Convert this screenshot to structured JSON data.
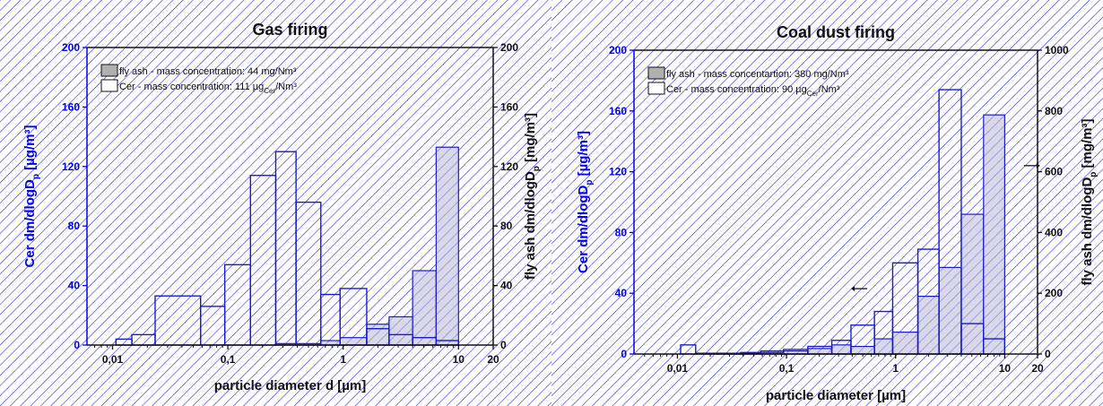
{
  "colors": {
    "hatch": "#2a2ad8",
    "axis": "#0000ee",
    "frame": "#111111",
    "bar_edge": "#1a1acc",
    "flyash_fill": "#b8b8d6",
    "cer_fill": "#ffffff",
    "legend_flyash_swatch": "#b0b0b0"
  },
  "chart_data": [
    {
      "type": "bar",
      "title": "Gas firing",
      "xlabel": "particle diameter d [µm]",
      "ylabel_left": "Cer dm/dlogDp [µg/m³]",
      "ylabel_right": "fly ash dm/dlogDp [mg/m³]",
      "x_scale": "log",
      "xlim": [
        0.006,
        20
      ],
      "x_ticks": [
        "0,01",
        "0,1",
        "1",
        "10",
        "20"
      ],
      "ylim_left": [
        0,
        200
      ],
      "ylim_right": [
        0,
        200
      ],
      "y_ticks_left": [
        "0",
        "40",
        "80",
        "120",
        "160",
        "200"
      ],
      "y_ticks_right": [
        "0",
        "40",
        "80",
        "120",
        "160",
        "200"
      ],
      "legend": {
        "placement": "upper-left",
        "entries": [
          {
            "label": "fly ash - mass concentration: 44 mg/Nm³",
            "swatch": "flyash"
          },
          {
            "label": "Cer - mass concentration: 111 µg",
            "sub": "Cer",
            "label_end": "/Nm³",
            "swatch": "cer"
          }
        ]
      },
      "series": [
        {
          "name": "Cer",
          "axis": "left",
          "bins": [
            {
              "lo": 0.0107,
              "hi": 0.0147,
              "value": 4
            },
            {
              "lo": 0.0147,
              "hi": 0.0234,
              "value": 7
            },
            {
              "lo": 0.0234,
              "hi": 0.058,
              "value": 33
            },
            {
              "lo": 0.058,
              "hi": 0.094,
              "value": 26
            },
            {
              "lo": 0.094,
              "hi": 0.157,
              "value": 54
            },
            {
              "lo": 0.157,
              "hi": 0.26,
              "value": 114
            },
            {
              "lo": 0.26,
              "hi": 0.39,
              "value": 130
            },
            {
              "lo": 0.39,
              "hi": 0.64,
              "value": 96
            },
            {
              "lo": 0.64,
              "hi": 0.94,
              "value": 34
            },
            {
              "lo": 0.94,
              "hi": 1.6,
              "value": 38
            },
            {
              "lo": 1.6,
              "hi": 2.5,
              "value": 11
            },
            {
              "lo": 2.5,
              "hi": 4.0,
              "value": 7
            },
            {
              "lo": 4.0,
              "hi": 6.4,
              "value": 5
            },
            {
              "lo": 6.4,
              "hi": 10.0,
              "value": 3
            }
          ]
        },
        {
          "name": "fly ash",
          "axis": "right",
          "bins": [
            {
              "lo": 0.26,
              "hi": 0.39,
              "value": 1
            },
            {
              "lo": 0.39,
              "hi": 0.64,
              "value": 1
            },
            {
              "lo": 0.64,
              "hi": 0.94,
              "value": 3
            },
            {
              "lo": 0.94,
              "hi": 1.6,
              "value": 5
            },
            {
              "lo": 1.6,
              "hi": 2.5,
              "value": 14
            },
            {
              "lo": 2.5,
              "hi": 4.0,
              "value": 19
            },
            {
              "lo": 4.0,
              "hi": 6.4,
              "value": 50
            },
            {
              "lo": 6.4,
              "hi": 10.0,
              "value": 133
            }
          ]
        }
      ]
    },
    {
      "type": "bar",
      "title": "Coal dust firing",
      "xlabel": "particle diameter [µm]",
      "ylabel_left": "Cer dm/dlogDp [µg/m³]",
      "ylabel_right": "fly ash dm/dlogDp [mg/m³]",
      "x_scale": "log",
      "xlim": [
        0.004,
        20
      ],
      "x_ticks": [
        "0,01",
        "0,1",
        "1",
        "10",
        "20"
      ],
      "ylim_left": [
        0,
        200
      ],
      "ylim_right": [
        0,
        1000
      ],
      "y_ticks_left": [
        "0",
        "40",
        "80",
        "120",
        "160",
        "200"
      ],
      "y_ticks_right": [
        "0",
        "200",
        "400",
        "600",
        "800",
        "1000"
      ],
      "legend": {
        "placement": "upper-left",
        "entries": [
          {
            "label": "fly ash - mass concentartion: 380 mg/Nm³",
            "swatch": "flyash"
          },
          {
            "label": "Cer - mass concentration: 90 µg",
            "sub": "Cer",
            "label_end": "/Nm³",
            "swatch": "cer"
          }
        ]
      },
      "annotations": [
        {
          "kind": "arrow",
          "direction": "left",
          "x": 0.55,
          "y": 43,
          "axis": "left"
        },
        {
          "kind": "arrow",
          "direction": "right",
          "x": 15,
          "y": 620,
          "axis": "right"
        }
      ],
      "series": [
        {
          "name": "Cer",
          "axis": "left",
          "bins": [
            {
              "lo": 0.0107,
              "hi": 0.0147,
              "value": 6
            },
            {
              "lo": 0.0147,
              "hi": 0.0234,
              "value": 0.5
            },
            {
              "lo": 0.0234,
              "hi": 0.038,
              "value": 0.5
            },
            {
              "lo": 0.038,
              "hi": 0.058,
              "value": 1
            },
            {
              "lo": 0.058,
              "hi": 0.094,
              "value": 2
            },
            {
              "lo": 0.094,
              "hi": 0.157,
              "value": 3
            },
            {
              "lo": 0.157,
              "hi": 0.26,
              "value": 5
            },
            {
              "lo": 0.26,
              "hi": 0.39,
              "value": 9
            },
            {
              "lo": 0.39,
              "hi": 0.64,
              "value": 19
            },
            {
              "lo": 0.64,
              "hi": 0.94,
              "value": 28
            },
            {
              "lo": 0.94,
              "hi": 1.6,
              "value": 60
            },
            {
              "lo": 1.6,
              "hi": 2.5,
              "value": 69
            },
            {
              "lo": 2.5,
              "hi": 4.0,
              "value": 174
            },
            {
              "lo": 4.0,
              "hi": 6.4,
              "value": 20
            },
            {
              "lo": 6.4,
              "hi": 10.0,
              "value": 10
            }
          ]
        },
        {
          "name": "fly ash",
          "axis": "right",
          "bins": [
            {
              "lo": 0.0234,
              "hi": 0.038,
              "value": 2
            },
            {
              "lo": 0.038,
              "hi": 0.058,
              "value": 2
            },
            {
              "lo": 0.058,
              "hi": 0.094,
              "value": 5
            },
            {
              "lo": 0.094,
              "hi": 0.157,
              "value": 10
            },
            {
              "lo": 0.157,
              "hi": 0.26,
              "value": 18
            },
            {
              "lo": 0.26,
              "hi": 0.39,
              "value": 30
            },
            {
              "lo": 0.39,
              "hi": 0.64,
              "value": 25
            },
            {
              "lo": 0.64,
              "hi": 0.94,
              "value": 50
            },
            {
              "lo": 0.94,
              "hi": 1.6,
              "value": 72
            },
            {
              "lo": 1.6,
              "hi": 2.5,
              "value": 190
            },
            {
              "lo": 2.5,
              "hi": 4.0,
              "value": 285
            },
            {
              "lo": 4.0,
              "hi": 6.4,
              "value": 460
            },
            {
              "lo": 6.4,
              "hi": 10.0,
              "value": 787
            }
          ]
        }
      ]
    }
  ]
}
